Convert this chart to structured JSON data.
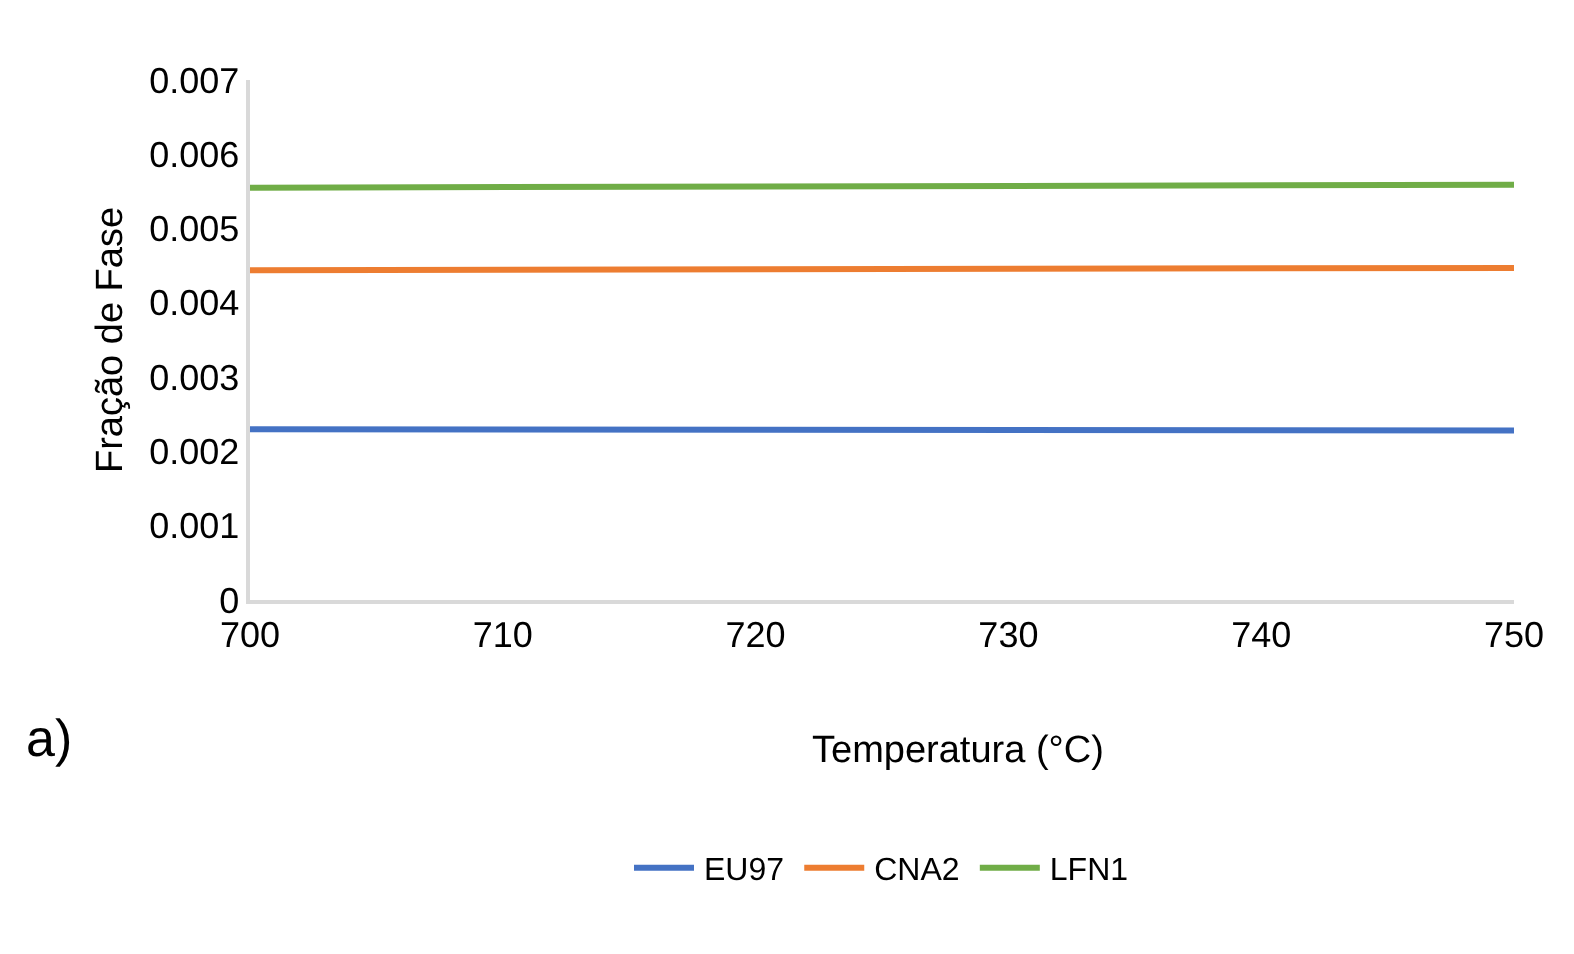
{
  "chart_data": {
    "type": "line",
    "xlabel": "Temperatura (°C)",
    "ylabel": "Fração de Fase",
    "x": [
      700,
      750
    ],
    "series": [
      {
        "name": "EU97",
        "color": "#4472c4",
        "values": [
          0.0023,
          0.00228
        ]
      },
      {
        "name": "CNA2",
        "color": "#ed7d31",
        "values": [
          0.00444,
          0.00447
        ]
      },
      {
        "name": "LFN1",
        "color": "#70ad47",
        "values": [
          0.00555,
          0.00559
        ]
      }
    ],
    "xlim": [
      700,
      750
    ],
    "xticks": [
      700,
      710,
      720,
      730,
      740,
      750
    ],
    "ylim": [
      0,
      0.007
    ],
    "yticks": [
      0,
      0.001,
      0.002,
      0.003,
      0.004,
      0.005,
      0.006,
      0.007
    ],
    "grid": false,
    "legend": "bottom",
    "marker": "none",
    "line_style": "solid",
    "annotations": [
      "a)"
    ]
  }
}
